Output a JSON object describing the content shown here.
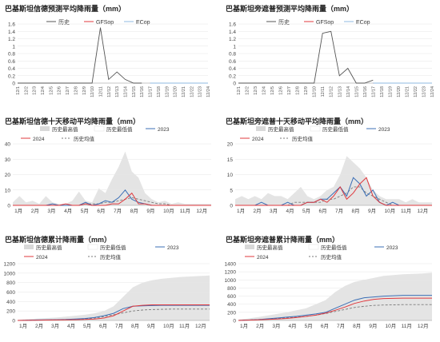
{
  "colors": {
    "history": "#555555",
    "gfs": "#e0393e",
    "ec": "#8fb8e0",
    "y2023": "#3b6fb6",
    "y2024": "#e0393e",
    "hist_mean": "#7a7a7a",
    "range_fill": "#d9d9d9",
    "grid": "#e6e6e6",
    "axis": "#999999",
    "title": "#222222"
  },
  "chart_data": [
    {
      "type": "line",
      "title": "巴基斯坦信德预测平均降雨量（mm）",
      "legend": [
        "历史",
        "GFSop",
        "ECop"
      ],
      "legend_position": "top",
      "ylim": [
        0,
        1.6
      ],
      "yticks": [
        "0",
        "0.2",
        "0.4",
        "0.6",
        "0.8",
        "1",
        "1.2",
        "1.4",
        "1.6"
      ],
      "categories": [
        "12/1",
        "12/2",
        "12/3",
        "12/4",
        "12/5",
        "12/6",
        "12/7",
        "12/8",
        "12/9",
        "12/10",
        "12/11",
        "12/12",
        "12/13",
        "12/14",
        "12/15",
        "12/16",
        "12/17",
        "12/18",
        "12/19",
        "12/20",
        "12/21",
        "12/22",
        "12/23",
        "12/24"
      ],
      "series": [
        {
          "name": "历史",
          "values": [
            0,
            0,
            0,
            0,
            0,
            0,
            0,
            0,
            0,
            0,
            1.5,
            0.1,
            0.3,
            0.1,
            0,
            0,
            null,
            null,
            null,
            null,
            null,
            null,
            null,
            null
          ]
        },
        {
          "name": "GFSop",
          "values": [
            null,
            null,
            null,
            null,
            null,
            null,
            null,
            null,
            null,
            null,
            null,
            null,
            null,
            null,
            null,
            null,
            0,
            0,
            0,
            0,
            0,
            0,
            0,
            0
          ]
        },
        {
          "name": "ECop",
          "values": [
            null,
            null,
            null,
            null,
            null,
            null,
            null,
            null,
            null,
            null,
            null,
            null,
            null,
            null,
            null,
            null,
            0,
            0,
            0,
            0,
            0,
            0,
            0,
            0
          ]
        }
      ]
    },
    {
      "type": "line",
      "title": "巴基斯坦旁遮普预测平均降雨量（mm）",
      "legend": [
        "历史",
        "GFSop",
        "ECop"
      ],
      "legend_position": "top",
      "ylim": [
        0,
        1.6
      ],
      "yticks": [
        "0",
        "0.2",
        "0.4",
        "0.6",
        "0.8",
        "1",
        "1.2",
        "1.4",
        "1.6"
      ],
      "categories": [
        "12/1",
        "12/2",
        "12/3",
        "12/4",
        "12/5",
        "12/6",
        "12/7",
        "12/8",
        "12/9",
        "12/10",
        "12/11",
        "12/12",
        "12/13",
        "12/14",
        "12/15",
        "12/16",
        "12/17",
        "12/18",
        "12/19",
        "12/20",
        "12/21",
        "12/22",
        "12/23",
        "12/24"
      ],
      "series": [
        {
          "name": "历史",
          "values": [
            0,
            0,
            0,
            0,
            0,
            0,
            0,
            0,
            0,
            0,
            1.35,
            1.4,
            0.2,
            0.4,
            0,
            0,
            0.08,
            null,
            null,
            null,
            null,
            null,
            null,
            null
          ]
        },
        {
          "name": "GFSop",
          "values": [
            null,
            null,
            null,
            null,
            null,
            null,
            null,
            null,
            null,
            null,
            null,
            null,
            null,
            null,
            null,
            null,
            0,
            0,
            0,
            0,
            0,
            0,
            0,
            0
          ]
        },
        {
          "name": "ECop",
          "values": [
            null,
            null,
            null,
            null,
            null,
            null,
            null,
            null,
            null,
            null,
            null,
            null,
            null,
            null,
            null,
            null,
            0,
            0,
            0,
            0,
            0,
            0,
            0,
            0
          ]
        }
      ]
    },
    {
      "type": "area",
      "title": "巴基斯坦信德十天移动平均降雨量（mm）",
      "legend": [
        "历史最高值",
        "历史最低值",
        "2023",
        "2024",
        "历史均值"
      ],
      "legend_position": "top",
      "ylim": [
        0,
        40
      ],
      "yticks": [
        "0",
        "10",
        "20",
        "30",
        "40"
      ],
      "months": [
        "1月",
        "2月",
        "3月",
        "4月",
        "5月",
        "6月",
        "7月",
        "8月",
        "9月",
        "10月",
        "11月",
        "12月"
      ],
      "range_max": [
        2,
        6,
        2,
        3,
        1,
        6,
        2,
        1,
        1,
        3,
        9,
        3,
        2,
        11,
        8,
        17,
        25,
        35,
        22,
        18,
        8,
        4,
        2,
        3,
        1,
        2,
        1,
        1,
        1,
        1,
        1
      ],
      "range_min": [
        0,
        0,
        0,
        0,
        0,
        0,
        0,
        0,
        0,
        0,
        0,
        0,
        0,
        0,
        0,
        0,
        0,
        0,
        0,
        0,
        0,
        0,
        0,
        0,
        0,
        0,
        0,
        0,
        0,
        0,
        0
      ],
      "y2023": [
        0,
        0,
        0,
        0,
        0,
        0,
        1,
        0,
        0,
        0,
        0,
        2,
        0,
        1,
        3,
        2,
        5,
        10,
        4,
        2,
        1,
        0,
        0,
        0,
        0,
        0,
        0,
        0,
        0,
        0,
        0
      ],
      "y2024": [
        0,
        0,
        0,
        0,
        0,
        0,
        0,
        0,
        1,
        0,
        0,
        1,
        0,
        0,
        0,
        1,
        1,
        4,
        8,
        1,
        1,
        0,
        0,
        0,
        0,
        0,
        0,
        0,
        0,
        0,
        0
      ],
      "hist_mean": [
        0,
        0,
        0,
        0,
        0,
        0,
        0,
        0,
        0,
        0,
        0,
        1,
        1,
        1,
        2,
        2,
        3,
        4,
        5,
        4,
        3,
        2,
        1,
        1,
        0,
        0,
        0,
        0,
        0,
        0,
        0
      ]
    },
    {
      "type": "area",
      "title": "巴基斯坦旁遮普十天移动平均降雨量（mm）",
      "legend": [
        "历史最高值",
        "历史最低值",
        "2023",
        "2024",
        "历史均值"
      ],
      "legend_position": "top",
      "ylim": [
        0,
        20
      ],
      "yticks": [
        "0",
        "5",
        "10",
        "15",
        "20"
      ],
      "months": [
        "1月",
        "2月",
        "3月",
        "4月",
        "5月",
        "6月",
        "7月",
        "8月",
        "9月",
        "10月",
        "11月",
        "12月"
      ],
      "range_max": [
        2,
        3,
        2,
        3,
        2,
        4,
        3,
        3,
        2,
        4,
        6,
        3,
        2,
        3,
        5,
        6,
        10,
        16,
        14,
        12,
        9,
        5,
        3,
        2,
        2,
        2,
        1,
        2,
        1,
        1,
        1
      ],
      "range_min": [
        0,
        0,
        0,
        0,
        0,
        0,
        0,
        0,
        0,
        0,
        0,
        0,
        0,
        0,
        0,
        0,
        0,
        0,
        0,
        0,
        0,
        0,
        0,
        0,
        0,
        0,
        0,
        0,
        0,
        0,
        0
      ],
      "y2023": [
        0,
        0,
        0,
        0,
        1,
        0,
        0,
        0,
        1,
        0,
        0,
        1,
        1,
        2,
        2,
        4,
        6,
        3,
        9,
        7,
        3,
        5,
        1,
        0,
        1,
        0,
        0,
        0,
        0,
        0,
        0
      ],
      "y2024": [
        0,
        0,
        0,
        0,
        0,
        0,
        0,
        0,
        0,
        0,
        0,
        1,
        1,
        2,
        1,
        3,
        6,
        2,
        4,
        7,
        9,
        3,
        1,
        0,
        0,
        0,
        0,
        0,
        0,
        0,
        0
      ],
      "hist_mean": [
        0,
        0,
        0,
        0,
        0,
        0,
        0,
        0,
        0,
        1,
        1,
        1,
        1,
        1,
        2,
        2,
        3,
        4,
        6,
        6,
        4,
        3,
        2,
        1,
        0,
        0,
        0,
        0,
        0,
        0,
        0
      ]
    },
    {
      "type": "area",
      "title": "巴基斯坦信德累计降雨量（mm）",
      "legend": [
        "历史最高值",
        "历史最低值",
        "2023",
        "2024",
        "历史均值"
      ],
      "legend_position": "top",
      "ylim": [
        0,
        1200
      ],
      "yticks": [
        "0",
        "200",
        "400",
        "600",
        "800",
        "1000",
        "1200"
      ],
      "months": [
        "1月",
        "2月",
        "3月",
        "4月",
        "5月",
        "6月",
        "7月",
        "8月",
        "9月",
        "10月",
        "11月",
        "12月"
      ],
      "range_max": [
        10,
        25,
        40,
        50,
        60,
        80,
        100,
        120,
        150,
        200,
        300,
        500,
        700,
        800,
        850,
        880,
        900,
        920,
        930,
        940,
        950
      ],
      "range_min": [
        0,
        0,
        0,
        0,
        0,
        0,
        0,
        0,
        0,
        0,
        0,
        0,
        0,
        0,
        0,
        0,
        0,
        0,
        0,
        0,
        0
      ],
      "y2023": [
        0,
        5,
        10,
        12,
        15,
        20,
        30,
        40,
        60,
        100,
        150,
        250,
        300,
        310,
        315,
        320,
        320,
        320,
        320,
        320,
        320
      ],
      "y2024": [
        0,
        2,
        5,
        8,
        10,
        12,
        15,
        20,
        30,
        50,
        100,
        200,
        300,
        320,
        330,
        330,
        330,
        330,
        330,
        330,
        330
      ],
      "hist_mean": [
        0,
        3,
        6,
        9,
        12,
        15,
        20,
        30,
        50,
        80,
        120,
        160,
        200,
        220,
        230,
        235,
        240,
        240,
        240,
        240,
        240
      ]
    },
    {
      "type": "area",
      "title": "巴基斯坦旁遮普累计降雨量（mm）",
      "legend": [
        "历史最高值",
        "历史最低值",
        "2023",
        "2024",
        "历史均值"
      ],
      "legend_position": "top",
      "ylim": [
        0,
        1400
      ],
      "yticks": [
        "0",
        "200",
        "400",
        "600",
        "800",
        "1000",
        "1200",
        "1400"
      ],
      "months": [
        "1月",
        "2月",
        "3月",
        "4月",
        "5月",
        "6月",
        "7月",
        "8月",
        "9月",
        "10月",
        "11月",
        "12月"
      ],
      "range_max": [
        20,
        50,
        80,
        120,
        160,
        200,
        250,
        300,
        400,
        500,
        700,
        850,
        950,
        1000,
        1050,
        1100,
        1120,
        1140,
        1150,
        1160,
        1180
      ],
      "range_min": [
        0,
        0,
        0,
        0,
        0,
        0,
        0,
        0,
        0,
        0,
        0,
        0,
        0,
        0,
        0,
        0,
        0,
        0,
        0,
        0,
        0
      ],
      "y2023": [
        0,
        10,
        20,
        40,
        60,
        80,
        100,
        130,
        160,
        200,
        300,
        400,
        500,
        560,
        580,
        600,
        610,
        620,
        620,
        620,
        620
      ],
      "y2024": [
        0,
        8,
        15,
        25,
        35,
        50,
        70,
        100,
        130,
        180,
        250,
        330,
        420,
        480,
        520,
        540,
        545,
        550,
        550,
        550,
        550
      ],
      "hist_mean": [
        0,
        10,
        20,
        35,
        50,
        65,
        80,
        100,
        130,
        170,
        220,
        270,
        320,
        350,
        370,
        380,
        385,
        390,
        390,
        390,
        390
      ]
    }
  ]
}
